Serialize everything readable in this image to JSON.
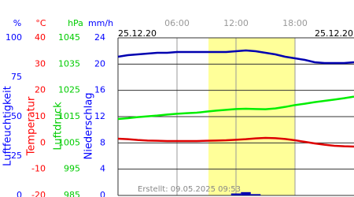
{
  "chart_data": {
    "type": "line",
    "dates": [
      "25.12.20",
      "25.12.20"
    ],
    "note": "Erstellt: 09.05.2025 09:53",
    "x": [
      0,
      1,
      2,
      3,
      4,
      5,
      6,
      7,
      8,
      9,
      10,
      11,
      12,
      13,
      14,
      15,
      16,
      17,
      18,
      19,
      20,
      21,
      22,
      23,
      24
    ],
    "xlim": [
      0,
      24
    ],
    "xticks": [
      {
        "value": 6,
        "label": "06:00"
      },
      {
        "value": 12,
        "label": "12:00"
      },
      {
        "value": 18,
        "label": "18:00"
      }
    ],
    "daylight": [
      9.2,
      18
    ],
    "grid": true,
    "axes": [
      {
        "unit": "%",
        "label": "Luftfeuchtigkeit",
        "color": "#0000ff",
        "line_color": "#0000b0",
        "ylim": [
          0,
          100
        ],
        "yticks": [
          100,
          75,
          50,
          25,
          0
        ],
        "values": [
          88,
          89,
          89.5,
          90,
          90.5,
          90.5,
          91,
          91,
          91,
          91,
          91,
          91,
          91.5,
          92,
          91.5,
          90.5,
          89.5,
          88,
          87,
          86,
          84.5,
          84,
          84,
          84,
          84.5
        ]
      },
      {
        "unit": "°C",
        "label": "Temperatur",
        "color": "#ff0000",
        "line_color": "#dd0000",
        "ylim": [
          -20,
          40
        ],
        "yticks": [
          40,
          30,
          20,
          10,
          0,
          -10,
          -20
        ],
        "values": [
          1.6,
          1.4,
          1.1,
          0.9,
          0.8,
          0.7,
          0.7,
          0.7,
          0.7,
          0.8,
          0.9,
          1.0,
          1.2,
          1.4,
          1.7,
          1.9,
          1.8,
          1.5,
          1.0,
          0.4,
          -0.2,
          -0.7,
          -1.1,
          -1.3,
          -1.4
        ]
      },
      {
        "unit": "hPa",
        "label": "Luftdruck",
        "color": "#00cc00",
        "line_color": "#00ee00",
        "ylim": [
          985,
          1045
        ],
        "yticks": [
          1045,
          1035,
          1025,
          1015,
          1005,
          995,
          985
        ],
        "values": [
          1014.1,
          1014.4,
          1014.8,
          1015.1,
          1015.4,
          1015.8,
          1016.1,
          1016.3,
          1016.5,
          1016.9,
          1017.3,
          1017.6,
          1017.9,
          1018.0,
          1017.9,
          1017.8,
          1018.1,
          1018.7,
          1019.4,
          1019.9,
          1020.5,
          1021.0,
          1021.5,
          1022.0,
          1022.6
        ]
      },
      {
        "unit": "mm/h",
        "label": "Niederschlag",
        "color": "#0000ff",
        "line_color": "#0000b0",
        "ylim": [
          0,
          24
        ],
        "yticks": [
          24,
          20,
          16,
          12,
          8,
          4,
          0
        ],
        "values": [
          0,
          0,
          0,
          0,
          0,
          0,
          0,
          0,
          0,
          0,
          0,
          0,
          0.3,
          0.5,
          0.2,
          0,
          0,
          0,
          0,
          0,
          0,
          0,
          0,
          0,
          0
        ]
      }
    ]
  }
}
